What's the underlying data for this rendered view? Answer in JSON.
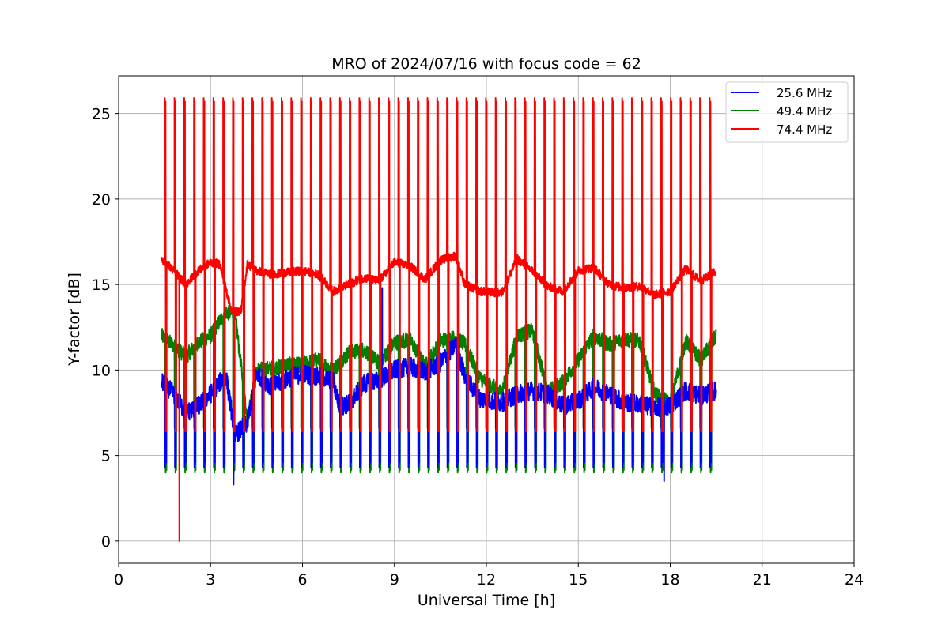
{
  "chart_data": {
    "type": "line",
    "title": "MRO of 2024/07/16 with focus code = 62",
    "xlabel": "Universal Time [h]",
    "ylabel": "Y-factor [dB]",
    "xlim": [
      0,
      24
    ],
    "ylim": [
      -1.3,
      27.2
    ],
    "xticks": [
      0,
      3,
      6,
      9,
      12,
      15,
      18,
      21,
      24
    ],
    "yticks": [
      0,
      5,
      10,
      15,
      20,
      25
    ],
    "grid": true,
    "legend_position": "top-right",
    "calibration": {
      "start": 1.4,
      "end": 19.5,
      "count": 58,
      "red_peak": 25.9,
      "red_base": 6.4,
      "green_low": 4.0,
      "green_high": 6.6,
      "blue_low": 4.3
    },
    "series": [
      {
        "name": "25.6 MHz",
        "color": "#0000ff",
        "x": [
          1.4,
          1.8,
          2.2,
          2.6,
          3.0,
          3.5,
          3.8,
          4.2,
          4.5,
          5.0,
          5.5,
          6.0,
          6.5,
          7.0,
          7.2,
          7.5,
          8.0,
          8.5,
          9.0,
          9.5,
          10.0,
          10.5,
          11.0,
          11.3,
          11.8,
          12.5,
          13.0,
          13.5,
          14.0,
          14.5,
          15.0,
          15.5,
          16.0,
          16.5,
          17.0,
          17.5,
          18.0,
          18.5,
          19.0,
          19.5
        ],
        "values": [
          9.3,
          8.6,
          7.5,
          7.9,
          8.6,
          9.7,
          6.2,
          6.9,
          9.8,
          9.0,
          9.5,
          9.8,
          9.6,
          9.4,
          7.9,
          8.0,
          9.2,
          9.4,
          10.0,
          10.2,
          9.9,
          10.4,
          11.5,
          9.6,
          8.3,
          8.1,
          8.6,
          8.8,
          8.6,
          7.9,
          8.2,
          9.0,
          8.6,
          8.1,
          8.0,
          7.8,
          7.9,
          8.8,
          8.5,
          8.8
        ]
      },
      {
        "name": "49.4 MHz",
        "color": "#008000",
        "x": [
          1.4,
          1.8,
          2.2,
          2.6,
          3.0,
          3.5,
          3.8,
          4.2,
          4.5,
          5.0,
          5.5,
          6.0,
          6.5,
          7.0,
          7.5,
          8.0,
          8.5,
          9.0,
          9.5,
          10.0,
          10.5,
          11.0,
          11.3,
          11.8,
          12.5,
          13.0,
          13.5,
          14.0,
          14.5,
          15.0,
          15.5,
          16.0,
          16.5,
          17.0,
          17.5,
          18.0,
          18.5,
          19.0,
          19.5
        ],
        "values": [
          12.0,
          11.4,
          10.8,
          11.6,
          12.0,
          13.4,
          13.2,
          7.2,
          10.0,
          10.1,
          10.3,
          10.3,
          10.6,
          10.0,
          11.0,
          11.2,
          10.4,
          11.6,
          11.8,
          10.2,
          11.7,
          11.9,
          11.5,
          9.5,
          8.7,
          12.0,
          12.3,
          8.7,
          9.3,
          10.6,
          12.0,
          11.5,
          11.8,
          11.7,
          8.6,
          8.0,
          11.7,
          10.6,
          12.0
        ]
      },
      {
        "name": "74.4 MHz",
        "color": "#ff0000",
        "x": [
          1.4,
          1.8,
          2.2,
          2.6,
          3.0,
          3.3,
          3.7,
          4.0,
          4.2,
          4.5,
          5.0,
          5.5,
          6.0,
          6.5,
          7.0,
          7.5,
          8.0,
          8.5,
          9.0,
          9.5,
          10.0,
          10.5,
          11.0,
          11.3,
          11.8,
          12.5,
          13.0,
          13.5,
          14.0,
          14.5,
          15.0,
          15.5,
          16.0,
          16.5,
          17.0,
          17.5,
          18.0,
          18.5,
          19.0,
          19.5
        ],
        "values": [
          16.5,
          15.8,
          15.0,
          15.8,
          16.3,
          16.2,
          13.3,
          13.5,
          16.2,
          15.8,
          15.6,
          15.7,
          15.8,
          15.6,
          14.6,
          15.0,
          15.4,
          15.2,
          16.3,
          16.1,
          15.3,
          16.4,
          16.7,
          15.0,
          14.6,
          14.5,
          16.5,
          15.8,
          14.9,
          14.6,
          15.8,
          16.0,
          15.0,
          14.8,
          14.9,
          14.4,
          14.6,
          15.9,
          15.2,
          15.8
        ]
      }
    ],
    "annotations": [
      {
        "series": "74.4 MHz",
        "x": 1.98,
        "y": 0.0
      },
      {
        "series": "25.6 MHz",
        "x": 8.6,
        "y": 14.8
      },
      {
        "series": "25.6 MHz",
        "x": 11.1,
        "y": 15.6
      },
      {
        "series": "25.6 MHz",
        "x": 3.75,
        "y": 3.3
      },
      {
        "series": "25.6 MHz",
        "x": 17.8,
        "y": 3.5
      }
    ]
  }
}
